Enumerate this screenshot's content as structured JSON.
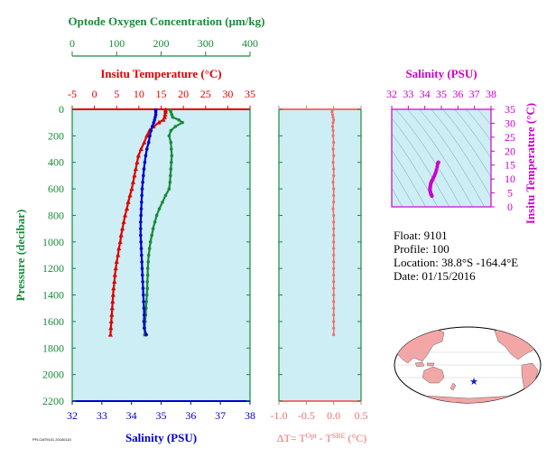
{
  "colors": {
    "oxygen": "#1a8a3a",
    "temperature": "#e00000",
    "salinity": "#0000cc",
    "salinity_panel": "#cc00cc",
    "delta": "#f07070",
    "panel_bg": "#cdeef5"
  },
  "footer_mark": "PFLOAT9101 20160115",
  "info": {
    "float": "Float:  9101",
    "profile": "Profile:  100",
    "location": "Location:  38.8°S  -164.4°E",
    "date": "Date:  01/15/2016"
  },
  "chart_data": [
    {
      "type": "line",
      "name": "profile-panel",
      "ylabel": "Pressure (decibar)",
      "ylim": [
        0,
        2200
      ],
      "yticks": [
        0,
        200,
        400,
        600,
        800,
        1000,
        1200,
        1400,
        1600,
        1800,
        2000,
        2200
      ],
      "axes": {
        "oxygen": {
          "label": "Optode Oxygen Concentration (μm/kg)",
          "range": [
            0,
            400
          ],
          "ticks": [
            0,
            100,
            200,
            300,
            400
          ]
        },
        "temperature": {
          "label": "Insitu Temperature (°C)",
          "range": [
            -5,
            35
          ],
          "ticks": [
            -5,
            0,
            5,
            10,
            15,
            20,
            25,
            30,
            35
          ]
        },
        "salinity": {
          "label": "Salinity (PSU)",
          "range": [
            32,
            38
          ],
          "ticks": [
            32,
            33,
            34,
            35,
            36,
            37,
            38
          ]
        }
      },
      "pressure": [
        5,
        20,
        40,
        60,
        80,
        100,
        130,
        160,
        200,
        250,
        300,
        350,
        400,
        450,
        500,
        550,
        600,
        650,
        700,
        750,
        800,
        850,
        900,
        950,
        1000,
        1050,
        1100,
        1150,
        1200,
        1250,
        1300,
        1350,
        1400,
        1450,
        1500,
        1550,
        1600,
        1650,
        1700
      ],
      "series": [
        {
          "name": "oxygen",
          "values": [
            220,
            222,
            224,
            226,
            240,
            248,
            232,
            222,
            218,
            222,
            223,
            224,
            223,
            222,
            221,
            220,
            218,
            210,
            203,
            196,
            190,
            186,
            182,
            179,
            176,
            174,
            172,
            171,
            170,
            170,
            169,
            169,
            168,
            167,
            166,
            165,
            164,
            163,
            163
          ]
        },
        {
          "name": "temperature",
          "values": [
            16.0,
            16.0,
            15.9,
            15.8,
            15.5,
            14.5,
            13.3,
            12.4,
            11.8,
            11.2,
            10.5,
            9.9,
            9.6,
            9.3,
            9.0,
            8.7,
            8.4,
            8.0,
            7.6,
            7.3,
            6.9,
            6.6,
            6.3,
            6.0,
            5.8,
            5.5,
            5.3,
            5.0,
            4.8,
            4.6,
            4.5,
            4.3,
            4.2,
            4.1,
            4.0,
            3.9,
            3.8,
            3.7,
            3.6
          ]
        },
        {
          "name": "salinity",
          "values": [
            34.82,
            34.82,
            34.82,
            34.8,
            34.78,
            34.75,
            34.7,
            34.66,
            34.62,
            34.58,
            34.52,
            34.48,
            34.45,
            34.42,
            34.4,
            34.38,
            34.36,
            34.35,
            34.34,
            34.33,
            34.32,
            34.31,
            34.31,
            34.31,
            34.32,
            34.33,
            34.34,
            34.35,
            34.36,
            34.37,
            34.38,
            34.39,
            34.4,
            34.41,
            34.42,
            34.43,
            34.42,
            34.43,
            34.5
          ]
        }
      ]
    },
    {
      "type": "line",
      "name": "delta-temperature-panel",
      "xlabel": "ΔT= T^Opt - T^SBE (°C)",
      "xlim": [
        -1.0,
        0.5
      ],
      "xticks": [
        -1.0,
        -0.5,
        0.0,
        0.5
      ],
      "ylim": [
        0,
        2200
      ],
      "pressure": [
        5,
        20,
        40,
        60,
        80,
        100,
        130,
        160,
        200,
        250,
        300,
        350,
        400,
        450,
        500,
        550,
        600,
        650,
        700,
        750,
        800,
        850,
        900,
        950,
        1000,
        1050,
        1100,
        1150,
        1200,
        1250,
        1300,
        1350,
        1400,
        1450,
        1500,
        1550,
        1600,
        1650,
        1700
      ],
      "values": [
        -0.02,
        -0.03,
        -0.02,
        -0.01,
        0.0,
        -0.01,
        -0.02,
        -0.01,
        -0.01,
        0.0,
        -0.01,
        0.0,
        -0.01,
        0.0,
        0.0,
        -0.01,
        0.0,
        0.0,
        0.0,
        -0.01,
        0.0,
        0.0,
        0.0,
        0.0,
        0.0,
        0.0,
        0.0,
        0.0,
        0.0,
        0.0,
        0.0,
        0.0,
        0.0,
        0.0,
        0.0,
        0.0,
        0.0,
        0.0,
        0.0
      ]
    },
    {
      "type": "scatter",
      "name": "ts-diagram",
      "xlabel": "Salinity (PSU)",
      "ylabel": "Insitu Temperature (°C)",
      "xlim": [
        32,
        38
      ],
      "ylim": [
        0,
        35
      ],
      "xticks": [
        32,
        33,
        34,
        35,
        36,
        37,
        38
      ],
      "yticks": [
        0,
        5,
        10,
        15,
        20,
        25,
        30,
        35
      ],
      "x": [
        34.82,
        34.82,
        34.8,
        34.78,
        34.75,
        34.7,
        34.66,
        34.62,
        34.58,
        34.52,
        34.48,
        34.45,
        34.42,
        34.4,
        34.38,
        34.36,
        34.35,
        34.34,
        34.33,
        34.32,
        34.31,
        34.31,
        34.31,
        34.32,
        34.33,
        34.34,
        34.35,
        34.36,
        34.37,
        34.38,
        34.39,
        34.4,
        34.41,
        34.42,
        34.43
      ],
      "y": [
        16.0,
        15.9,
        15.8,
        15.5,
        14.5,
        13.3,
        12.4,
        11.8,
        11.2,
        10.5,
        9.9,
        9.6,
        9.3,
        9.0,
        8.7,
        8.4,
        8.0,
        7.6,
        7.3,
        6.9,
        6.6,
        6.3,
        6.0,
        5.8,
        5.5,
        5.3,
        5.0,
        4.8,
        4.6,
        4.5,
        4.3,
        4.2,
        4.1,
        4.0,
        3.9
      ]
    },
    {
      "type": "map",
      "name": "location-map",
      "marker": {
        "lat": -38.8,
        "lon": -164.4
      }
    }
  ]
}
